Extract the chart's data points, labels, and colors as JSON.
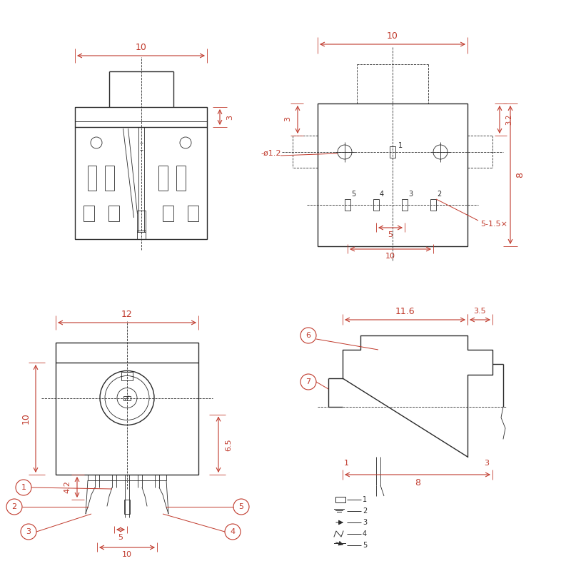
{
  "bg_color": "#ffffff",
  "lc": "#2a2a2a",
  "dc": "#c0392b",
  "lw": 1.0,
  "lw_t": 0.6
}
